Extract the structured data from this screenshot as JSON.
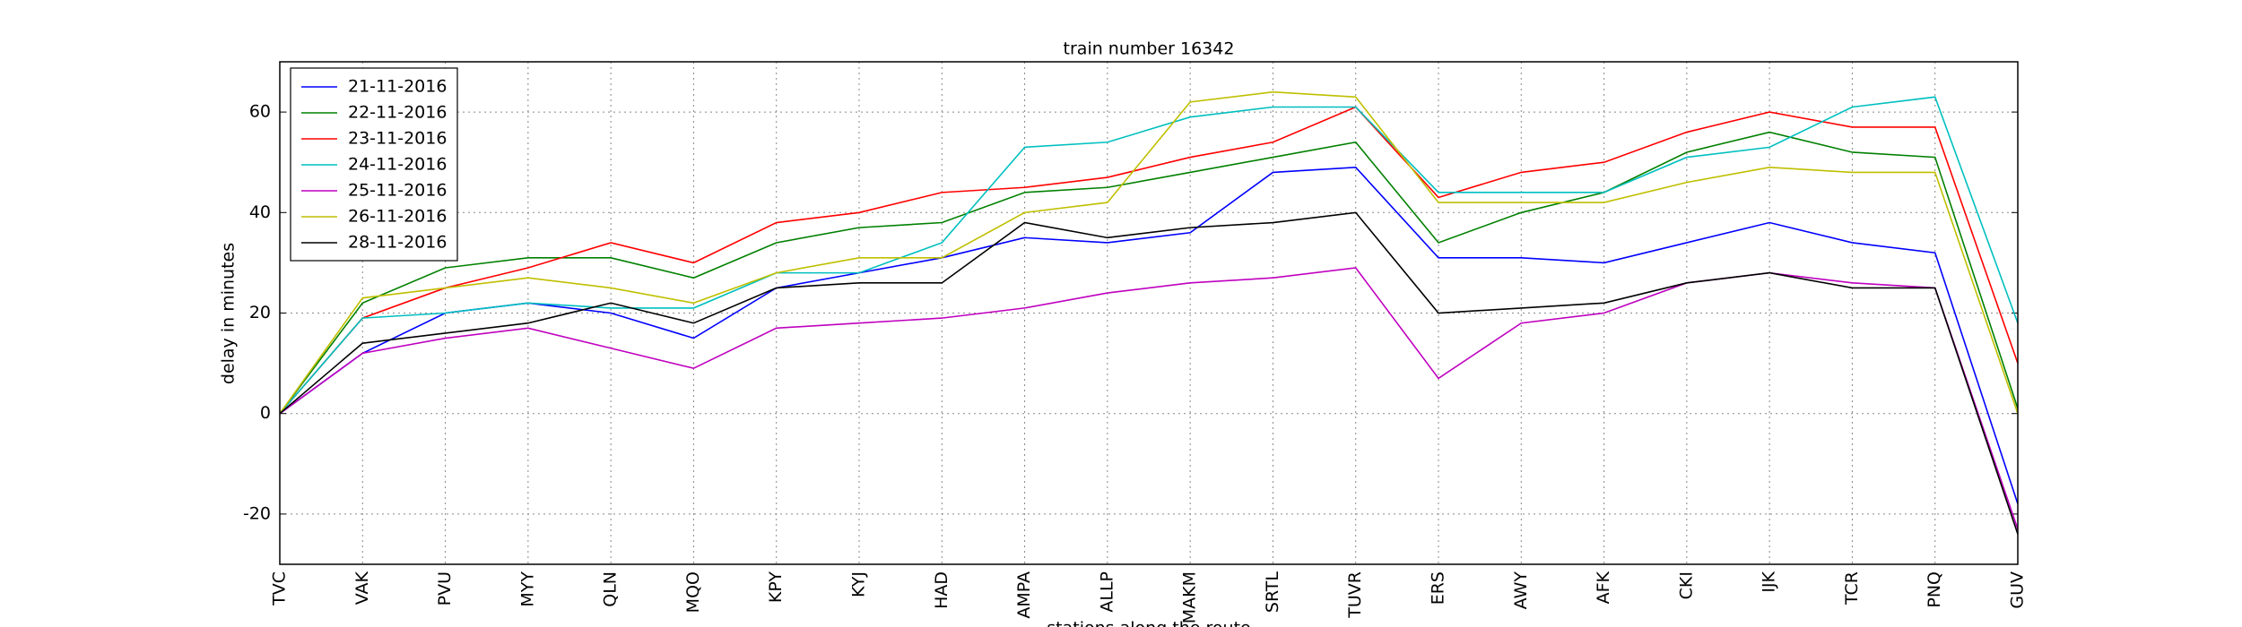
{
  "chart_data": {
    "type": "line",
    "title": "train number 16342",
    "x_label": "stations along the route",
    "y_label": "delay in minutes",
    "categories": [
      "TVC",
      "VAK",
      "PVU",
      "MYY",
      "QLN",
      "MQO",
      "KPY",
      "KYJ",
      "HAD",
      "AMPA",
      "ALLP",
      "MAKM",
      "SRTL",
      "TUVR",
      "ERS",
      "AWY",
      "AFK",
      "CKI",
      "IJK",
      "TCR",
      "PNQ",
      "GUV"
    ],
    "series": [
      {
        "name": "21-11-2016",
        "color": "#0000ff",
        "values": [
          0,
          12,
          20,
          22,
          20,
          15,
          25,
          28,
          31,
          35,
          34,
          36,
          48,
          49,
          31,
          31,
          30,
          34,
          38,
          34,
          32,
          -18
        ]
      },
      {
        "name": "22-11-2016",
        "color": "#008000",
        "values": [
          0,
          22,
          29,
          31,
          31,
          27,
          34,
          37,
          38,
          44,
          45,
          48,
          51,
          54,
          34,
          40,
          44,
          52,
          56,
          52,
          51,
          1
        ]
      },
      {
        "name": "23-11-2016",
        "color": "#ff0000",
        "values": [
          0,
          19,
          25,
          29,
          34,
          30,
          38,
          40,
          44,
          45,
          47,
          51,
          54,
          61,
          43,
          48,
          50,
          56,
          60,
          57,
          57,
          10
        ]
      },
      {
        "name": "24-11-2016",
        "color": "#00bfbf",
        "values": [
          0,
          19,
          20,
          22,
          21,
          21,
          28,
          28,
          34,
          53,
          54,
          59,
          61,
          61,
          44,
          44,
          44,
          51,
          53,
          61,
          63,
          18
        ]
      },
      {
        "name": "25-11-2016",
        "color": "#bf00bf",
        "values": [
          0,
          12,
          15,
          17,
          13,
          9,
          17,
          18,
          19,
          21,
          24,
          26,
          27,
          29,
          7,
          18,
          20,
          26,
          28,
          26,
          25,
          -23
        ]
      },
      {
        "name": "26-11-2016",
        "color": "#bfbf00",
        "values": [
          0,
          23,
          25,
          27,
          25,
          22,
          28,
          31,
          31,
          40,
          42,
          62,
          64,
          63,
          42,
          42,
          42,
          46,
          49,
          48,
          48,
          0
        ]
      },
      {
        "name": "28-11-2016",
        "color": "#000000",
        "values": [
          0,
          14,
          16,
          18,
          22,
          18,
          25,
          26,
          26,
          38,
          35,
          37,
          38,
          40,
          20,
          21,
          22,
          26,
          28,
          25,
          25,
          -24
        ]
      }
    ],
    "ylim": [
      -30,
      70
    ],
    "yticks": [
      -20,
      0,
      20,
      40,
      60
    ],
    "grid": true,
    "legend": "upper left"
  }
}
